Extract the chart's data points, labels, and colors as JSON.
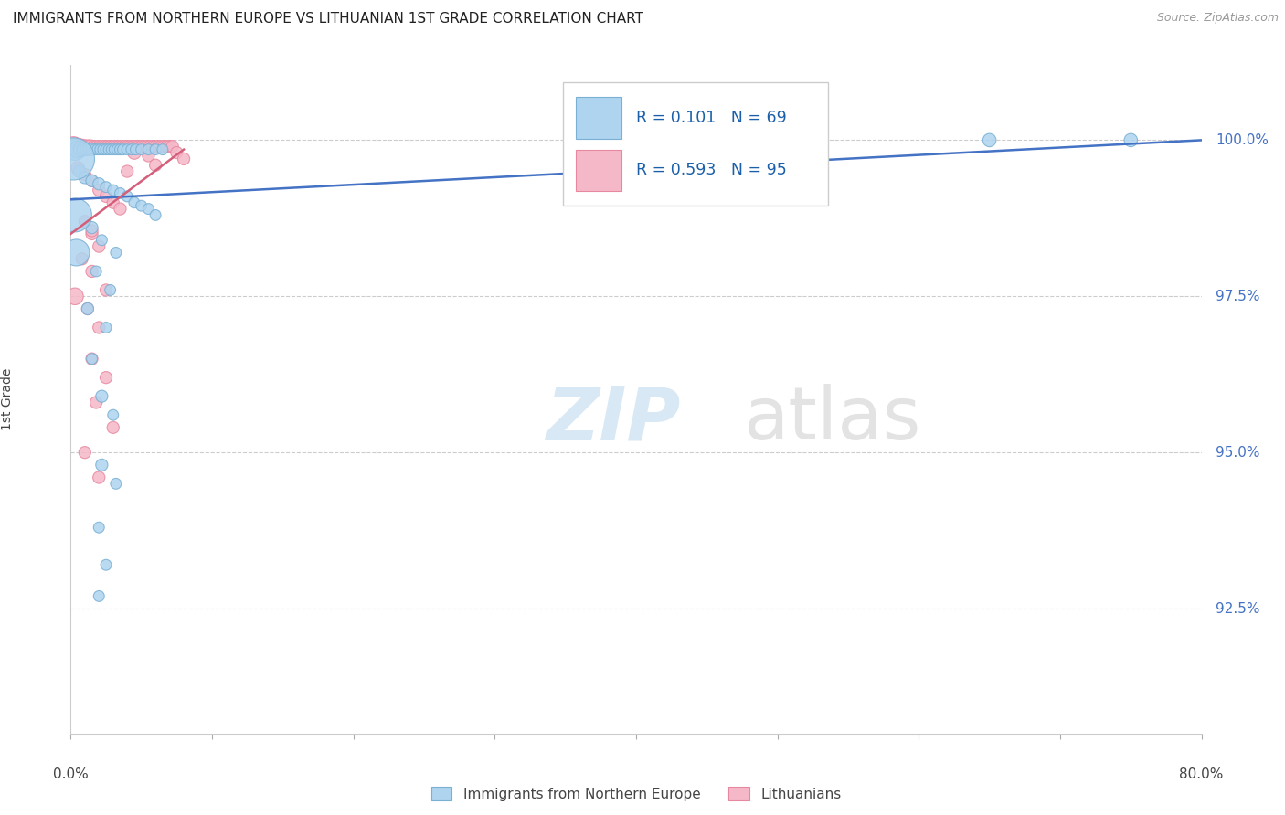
{
  "title": "IMMIGRANTS FROM NORTHERN EUROPE VS LITHUANIAN 1ST GRADE CORRELATION CHART",
  "source": "Source: ZipAtlas.com",
  "ylabel": "1st Grade",
  "y_ticks": [
    92.5,
    95.0,
    97.5,
    100.0
  ],
  "y_tick_labels": [
    "92.5%",
    "95.0%",
    "97.5%",
    "100.0%"
  ],
  "xlim": [
    0,
    80
  ],
  "ylim": [
    90.5,
    101.2
  ],
  "blue_R": "0.101",
  "blue_N": "69",
  "pink_R": "0.593",
  "pink_N": "95",
  "blue_color": "#aed4ef",
  "pink_color": "#f5b8c8",
  "blue_edge_color": "#7ab0d4",
  "pink_edge_color": "#e888a0",
  "blue_line_color": "#4472c4",
  "pink_line_color": "#d45f7a",
  "legend_label_blue": "Immigrants from Northern Europe",
  "legend_label_pink": "Lithuanians",
  "blue_trend": [
    0,
    80,
    99.05,
    100.0
  ],
  "pink_trend": [
    0,
    8,
    98.5,
    99.85
  ],
  "blue_data": [
    [
      0.3,
      99.85,
      18
    ],
    [
      0.5,
      99.85,
      14
    ],
    [
      0.7,
      99.85,
      12
    ],
    [
      0.9,
      99.85,
      11
    ],
    [
      1.1,
      99.85,
      10
    ],
    [
      1.3,
      99.85,
      10
    ],
    [
      1.5,
      99.85,
      10
    ],
    [
      1.7,
      99.85,
      9
    ],
    [
      1.9,
      99.85,
      9
    ],
    [
      2.1,
      99.85,
      9
    ],
    [
      2.3,
      99.85,
      9
    ],
    [
      2.5,
      99.85,
      9
    ],
    [
      2.7,
      99.85,
      9
    ],
    [
      2.9,
      99.85,
      9
    ],
    [
      3.1,
      99.85,
      9
    ],
    [
      3.3,
      99.85,
      9
    ],
    [
      3.5,
      99.85,
      9
    ],
    [
      3.7,
      99.85,
      9
    ],
    [
      4.0,
      99.85,
      9
    ],
    [
      4.3,
      99.85,
      9
    ],
    [
      4.6,
      99.85,
      9
    ],
    [
      5.0,
      99.85,
      9
    ],
    [
      5.5,
      99.85,
      9
    ],
    [
      6.0,
      99.85,
      9
    ],
    [
      6.5,
      99.85,
      9
    ],
    [
      0.6,
      99.5,
      10
    ],
    [
      1.0,
      99.4,
      10
    ],
    [
      1.5,
      99.35,
      10
    ],
    [
      2.0,
      99.3,
      10
    ],
    [
      2.5,
      99.25,
      9
    ],
    [
      3.0,
      99.2,
      9
    ],
    [
      3.5,
      99.15,
      9
    ],
    [
      4.0,
      99.1,
      9
    ],
    [
      4.5,
      99.0,
      9
    ],
    [
      5.0,
      98.95,
      9
    ],
    [
      5.5,
      98.9,
      9
    ],
    [
      6.0,
      98.8,
      9
    ],
    [
      1.5,
      98.6,
      10
    ],
    [
      2.2,
      98.4,
      9
    ],
    [
      3.2,
      98.2,
      9
    ],
    [
      1.8,
      97.9,
      9
    ],
    [
      2.8,
      97.6,
      9
    ],
    [
      1.2,
      97.3,
      10
    ],
    [
      2.5,
      97.0,
      9
    ],
    [
      1.5,
      96.5,
      9
    ],
    [
      2.2,
      95.9,
      10
    ],
    [
      3.0,
      95.6,
      9
    ],
    [
      2.2,
      94.8,
      10
    ],
    [
      3.2,
      94.5,
      9
    ],
    [
      2.0,
      93.8,
      9
    ],
    [
      2.5,
      93.2,
      9
    ],
    [
      2.0,
      92.7,
      9
    ],
    [
      0.2,
      99.7,
      35
    ],
    [
      0.3,
      98.8,
      28
    ],
    [
      0.4,
      98.2,
      22
    ],
    [
      65.0,
      100.0,
      11
    ],
    [
      75.0,
      100.0,
      11
    ]
  ],
  "pink_data": [
    [
      0.2,
      99.9,
      16
    ],
    [
      0.4,
      99.9,
      14
    ],
    [
      0.6,
      99.9,
      13
    ],
    [
      0.8,
      99.9,
      12
    ],
    [
      1.0,
      99.9,
      11
    ],
    [
      1.2,
      99.9,
      11
    ],
    [
      1.4,
      99.9,
      11
    ],
    [
      1.6,
      99.9,
      10
    ],
    [
      1.8,
      99.9,
      10
    ],
    [
      2.0,
      99.9,
      10
    ],
    [
      2.2,
      99.9,
      10
    ],
    [
      2.4,
      99.9,
      10
    ],
    [
      2.6,
      99.9,
      10
    ],
    [
      2.8,
      99.9,
      10
    ],
    [
      3.0,
      99.9,
      10
    ],
    [
      3.2,
      99.9,
      10
    ],
    [
      3.4,
      99.9,
      10
    ],
    [
      3.6,
      99.9,
      10
    ],
    [
      3.8,
      99.9,
      10
    ],
    [
      4.0,
      99.9,
      10
    ],
    [
      4.2,
      99.9,
      10
    ],
    [
      4.4,
      99.9,
      10
    ],
    [
      4.6,
      99.9,
      10
    ],
    [
      4.8,
      99.9,
      10
    ],
    [
      5.0,
      99.9,
      10
    ],
    [
      5.2,
      99.9,
      10
    ],
    [
      5.4,
      99.9,
      10
    ],
    [
      5.6,
      99.9,
      10
    ],
    [
      5.8,
      99.9,
      10
    ],
    [
      6.0,
      99.9,
      10
    ],
    [
      6.2,
      99.9,
      10
    ],
    [
      6.4,
      99.9,
      10
    ],
    [
      6.6,
      99.9,
      10
    ],
    [
      6.8,
      99.9,
      10
    ],
    [
      7.0,
      99.9,
      10
    ],
    [
      7.2,
      99.9,
      10
    ],
    [
      0.5,
      99.55,
      11
    ],
    [
      1.0,
      99.45,
      10
    ],
    [
      1.5,
      99.35,
      10
    ],
    [
      2.0,
      99.2,
      10
    ],
    [
      2.5,
      99.1,
      10
    ],
    [
      3.0,
      99.0,
      10
    ],
    [
      1.0,
      98.7,
      10
    ],
    [
      1.5,
      98.5,
      10
    ],
    [
      2.0,
      98.3,
      10
    ],
    [
      0.8,
      98.1,
      10
    ],
    [
      1.5,
      97.9,
      10
    ],
    [
      2.5,
      97.6,
      10
    ],
    [
      1.2,
      97.3,
      10
    ],
    [
      2.0,
      97.0,
      10
    ],
    [
      1.5,
      96.5,
      10
    ],
    [
      2.5,
      96.2,
      10
    ],
    [
      1.8,
      95.8,
      10
    ],
    [
      3.0,
      95.4,
      10
    ],
    [
      1.0,
      95.0,
      10
    ],
    [
      2.0,
      94.6,
      10
    ],
    [
      1.5,
      98.55,
      10
    ],
    [
      0.3,
      97.5,
      14
    ],
    [
      4.5,
      99.8,
      11
    ],
    [
      5.5,
      99.75,
      10
    ],
    [
      7.5,
      99.8,
      10
    ],
    [
      8.0,
      99.7,
      10
    ],
    [
      3.5,
      98.9,
      10
    ],
    [
      4.0,
      99.5,
      10
    ],
    [
      6.0,
      99.6,
      10
    ]
  ]
}
